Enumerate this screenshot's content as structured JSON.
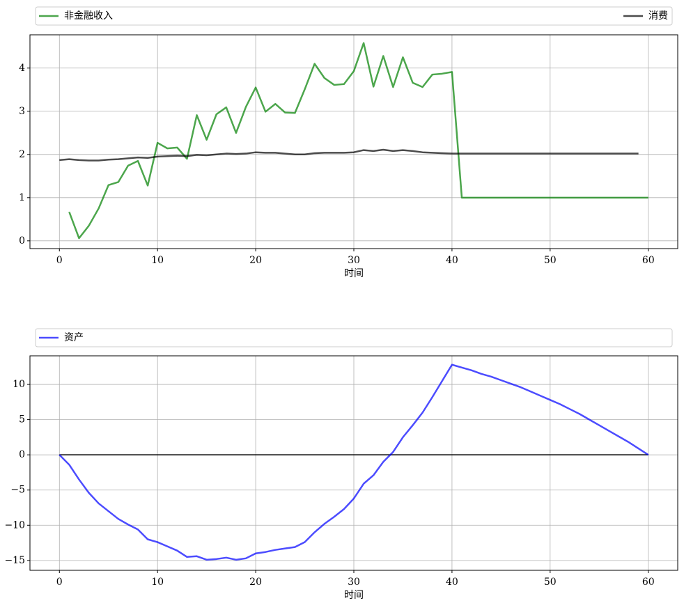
{
  "chart_data": [
    {
      "type": "line",
      "xlabel": "时间",
      "legend": "top-expand",
      "grid": true,
      "xlim": [
        -3,
        63
      ],
      "ylim": [
        -0.18,
        4.77
      ],
      "xticks": [
        0,
        10,
        20,
        30,
        40,
        50,
        60
      ],
      "yticks": [
        0,
        1,
        2,
        3,
        4
      ],
      "series": [
        {
          "name": "非金融收入",
          "color": "#008000",
          "alpha": 0.7,
          "x": [
            1,
            2,
            3,
            4,
            5,
            6,
            7,
            8,
            9,
            10,
            11,
            12,
            13,
            14,
            15,
            16,
            17,
            18,
            19,
            20,
            21,
            22,
            23,
            24,
            25,
            26,
            27,
            28,
            29,
            30,
            31,
            32,
            33,
            34,
            35,
            36,
            37,
            38,
            39,
            40,
            41,
            42,
            43,
            44,
            45,
            46,
            47,
            48,
            49,
            50,
            51,
            52,
            53,
            54,
            55,
            56,
            57,
            58,
            59,
            60
          ],
          "values": [
            0.67,
            0.06,
            0.35,
            0.75,
            1.29,
            1.36,
            1.74,
            1.85,
            1.28,
            2.27,
            2.14,
            2.16,
            1.9,
            2.91,
            2.34,
            2.93,
            3.09,
            2.5,
            3.1,
            3.55,
            2.99,
            3.17,
            2.97,
            2.96,
            3.51,
            4.1,
            3.77,
            3.61,
            3.63,
            3.93,
            4.58,
            3.57,
            4.28,
            3.56,
            4.25,
            3.66,
            3.56,
            3.85,
            3.87,
            3.91,
            1.0,
            1.0,
            1.0,
            1.0,
            1.0,
            1.0,
            1.0,
            1.0,
            1.0,
            1.0,
            1.0,
            1.0,
            1.0,
            1.0,
            1.0,
            1.0,
            1.0,
            1.0,
            1.0,
            1.0
          ]
        },
        {
          "name": "消费",
          "color": "#000000",
          "alpha": 0.7,
          "x": [
            0,
            1,
            2,
            3,
            4,
            5,
            6,
            7,
            8,
            9,
            10,
            11,
            12,
            13,
            14,
            15,
            16,
            17,
            18,
            19,
            20,
            21,
            22,
            23,
            24,
            25,
            26,
            27,
            28,
            29,
            30,
            31,
            32,
            33,
            34,
            35,
            36,
            37,
            38,
            39,
            40,
            41,
            42,
            43,
            44,
            45,
            46,
            47,
            48,
            49,
            50,
            51,
            52,
            53,
            54,
            55,
            56,
            57,
            58,
            59
          ],
          "values": [
            1.87,
            1.89,
            1.87,
            1.86,
            1.86,
            1.88,
            1.89,
            1.91,
            1.93,
            1.92,
            1.95,
            1.96,
            1.97,
            1.96,
            1.99,
            1.98,
            2.0,
            2.02,
            2.01,
            2.02,
            2.05,
            2.04,
            2.04,
            2.02,
            2.0,
            2.0,
            2.03,
            2.04,
            2.04,
            2.04,
            2.05,
            2.1,
            2.08,
            2.11,
            2.08,
            2.1,
            2.08,
            2.05,
            2.04,
            2.03,
            2.02,
            2.02,
            2.02,
            2.02,
            2.02,
            2.02,
            2.02,
            2.02,
            2.02,
            2.02,
            2.02,
            2.02,
            2.02,
            2.02,
            2.02,
            2.02,
            2.02,
            2.02,
            2.02,
            2.02
          ]
        }
      ]
    },
    {
      "type": "line",
      "xlabel": "时间",
      "legend": "top-expand",
      "grid": true,
      "xlim": [
        -3,
        63
      ],
      "ylim": [
        -16.4,
        14.06
      ],
      "xticks": [
        0,
        10,
        20,
        30,
        40,
        50,
        60
      ],
      "yticks": [
        {
          "value": -15,
          "label": "−15"
        },
        {
          "value": -10,
          "label": "−10"
        },
        {
          "value": -5,
          "label": "−5"
        },
        0,
        5,
        10
      ],
      "reference_line": {
        "value": 0,
        "xrange": [
          0,
          60
        ],
        "color": "#000000"
      },
      "series": [
        {
          "name": "资产",
          "color": "#0000ff",
          "alpha": 0.7,
          "x": [
            0,
            1,
            2,
            3,
            4,
            5,
            6,
            7,
            8,
            9,
            10,
            11,
            12,
            13,
            14,
            15,
            16,
            17,
            18,
            19,
            20,
            21,
            22,
            23,
            24,
            25,
            26,
            27,
            28,
            29,
            30,
            31,
            32,
            33,
            34,
            35,
            36,
            37,
            38,
            39,
            40,
            41,
            42,
            43,
            44,
            45,
            46,
            47,
            48,
            49,
            50,
            51,
            52,
            53,
            54,
            55,
            56,
            57,
            58,
            59,
            60
          ],
          "values": [
            0,
            -1.4,
            -3.5,
            -5.4,
            -6.9,
            -8.0,
            -9.1,
            -9.9,
            -10.6,
            -12.0,
            -12.4,
            -13.0,
            -13.6,
            -14.5,
            -14.4,
            -14.9,
            -14.8,
            -14.6,
            -14.9,
            -14.7,
            -14.0,
            -13.8,
            -13.5,
            -13.3,
            -13.1,
            -12.4,
            -11.0,
            -9.8,
            -8.8,
            -7.7,
            -6.2,
            -4.1,
            -2.9,
            -1.0,
            0.4,
            2.5,
            4.2,
            6.0,
            8.2,
            10.5,
            12.8,
            12.4,
            12.0,
            11.5,
            11.1,
            10.6,
            10.1,
            9.6,
            9.0,
            8.4,
            7.8,
            7.2,
            6.5,
            5.8,
            5.0,
            4.2,
            3.4,
            2.6,
            1.8,
            0.9,
            0
          ]
        }
      ]
    }
  ]
}
